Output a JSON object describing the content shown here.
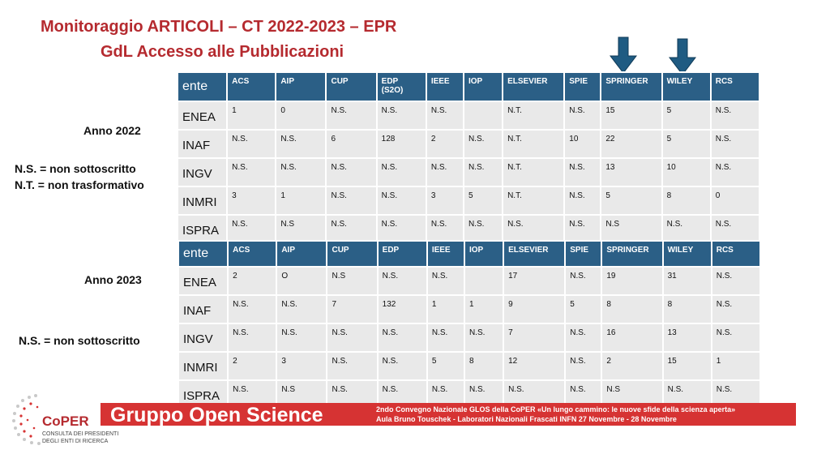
{
  "title": {
    "line1": "Monitoraggio ARTICOLI – CT 2022-2023 – EPR",
    "line2": "GdL Accesso alle Pubblicazioni"
  },
  "legend_2022": {
    "year": "Anno 2022",
    "ns": "N.S. = non sottoscritto",
    "nt": "N.T.  = non trasformativo"
  },
  "legend_2023": {
    "year": "Anno 2023",
    "ns": "N.S. = non sottoscritto"
  },
  "table_2022": {
    "header": [
      "ente",
      "ACS",
      "AIP",
      "CUP",
      "EDP (S2O)",
      "IEEE",
      "IOP",
      "ELSEVIER",
      "SPIE",
      "SPRINGER",
      "WILEY",
      "RCS"
    ],
    "rows": [
      [
        "ENEA",
        "1",
        "0",
        "N.S.",
        "N.S.",
        "N.S.",
        "",
        "N.T.",
        "N.S.",
        "15",
        "5",
        "N.S."
      ],
      [
        "INAF",
        "N.S.",
        "N.S.",
        "6",
        "128",
        "2",
        "N.S.",
        "N.T.",
        "10",
        "22",
        "5",
        "N.S."
      ],
      [
        "INGV",
        "N.S.",
        "N.S.",
        "N.S.",
        "N.S.",
        "N.S.",
        "N.S.",
        "N.T.",
        "N.S.",
        "13",
        "10",
        "N.S."
      ],
      [
        "INMRI",
        "3",
        "1",
        "N.S.",
        "N.S.",
        "3",
        "5",
        "N.T.",
        "N.S.",
        "5",
        "8",
        "0"
      ],
      [
        "ISPRA",
        "N.S.",
        "N.S",
        "N.S.",
        "N.S.",
        "N.S.",
        "N.S.",
        "N.S.",
        "N.S.",
        "N.S",
        "N.S.",
        "N.S."
      ]
    ]
  },
  "table_2023": {
    "header": [
      "ente",
      "ACS",
      "AIP",
      "CUP",
      "EDP",
      "IEEE",
      "IOP",
      "ELSEVIER",
      "SPIE",
      "SPRINGER",
      "WILEY",
      "RCS"
    ],
    "rows": [
      [
        "ENEA",
        "2",
        "O",
        "N.S",
        "N.S.",
        "N.S.",
        "",
        "17",
        "N.S.",
        "19",
        "31",
        "N.S."
      ],
      [
        "INAF",
        "N.S.",
        "N.S.",
        "7",
        "132",
        "1",
        "1",
        "9",
        "5",
        "8",
        "8",
        "N.S."
      ],
      [
        "INGV",
        "N.S.",
        "N.S.",
        "N.S.",
        "N.S.",
        "N.S.",
        "N.S.",
        "7",
        "N.S.",
        "16",
        "13",
        "N.S."
      ],
      [
        "INMRI",
        "2",
        "3",
        "N.S.",
        "N.S.",
        "5",
        "8",
        "12",
        "N.S.",
        "2",
        "15",
        "1"
      ],
      [
        "ISPRA",
        "N.S.",
        "N.S",
        "N.S.",
        "N.S.",
        "N.S.",
        "N.S.",
        "N.S.",
        "N.S.",
        "N.S",
        "N.S.",
        "N.S."
      ]
    ]
  },
  "arrows": [
    {
      "icon": "down-arrow-icon",
      "points_to": "SPRINGER"
    },
    {
      "icon": "down-arrow-icon",
      "points_to": "WILEY"
    }
  ],
  "footer": {
    "brand": "Gruppo Open Science",
    "event_line1": "2ndo Convegno Nazionale GLOS della CoPER «Un lungo cammino: le nuove sfide della scienza aperta»",
    "event_line2": "Aula Bruno Touschek - Laboratori Nazionali Frascati INFN    27 Novembre - 28 Novembre"
  },
  "logo": {
    "name": "CoPER",
    "sub1": "CONSULTA DEI PRESIDENTI",
    "sub2": "DEGLI ENTI DI RICERCA"
  },
  "colors": {
    "title_red": "#b52a2f",
    "header_blue": "#2b5f86",
    "cell_grey": "#e9e9e9",
    "footer_red": "#d63333",
    "arrow_blue": "#1f5b82"
  }
}
